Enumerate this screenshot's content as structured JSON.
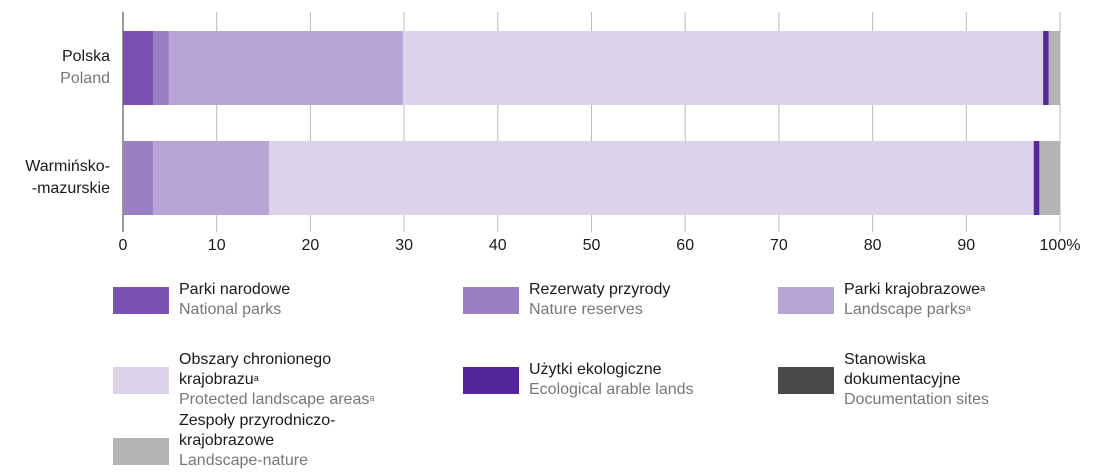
{
  "chart_data": {
    "type": "stacked_bar_horizontal",
    "categories": [
      [
        "Polska",
        "Poland"
      ],
      [
        "Warmińsko-",
        "-mazurskie"
      ]
    ],
    "series": [
      {
        "name": "Parki narodowe",
        "name_en": "National parks",
        "color": "#7a50b0",
        "values": [
          3.2,
          0
        ]
      },
      {
        "name": "Rezerwaty przyrody",
        "name_en": "Nature reserves",
        "color": "#9a7fc3",
        "values": [
          1.7,
          3.2
        ]
      },
      {
        "name": "Parki krajobrazowe",
        "name_en": "Landscape parks",
        "footnote": "a",
        "color": "#b7a5d6",
        "values": [
          25.0,
          12.4
        ]
      },
      {
        "name": "Obszary chronionego krajobrazu",
        "name_en": "Protected landscape areas",
        "footnote": "a",
        "color": "#dcd3eb",
        "values": [
          68.3,
          81.6
        ]
      },
      {
        "name": "Użytki ekologiczne",
        "name_en": "Ecological arable lands",
        "color": "#55259a",
        "values": [
          0.6,
          0.6
        ]
      },
      {
        "name": "Stanowiska dokumentacyjne",
        "name_en": "Documentation sites",
        "color": "#4a4a4a",
        "values": [
          0,
          0
        ]
      },
      {
        "name": "Zespoły przyrodniczo-krajobrazowe",
        "name_en": "Landscape-nature complexes",
        "color": "#b3b3b3",
        "values": [
          1.2,
          2.2
        ]
      }
    ],
    "xlim": [
      0,
      100
    ],
    "xticks": [
      0,
      10,
      20,
      30,
      40,
      50,
      60,
      70,
      80,
      90,
      {
        "value": 100,
        "label": "100%"
      }
    ],
    "grid": true
  }
}
